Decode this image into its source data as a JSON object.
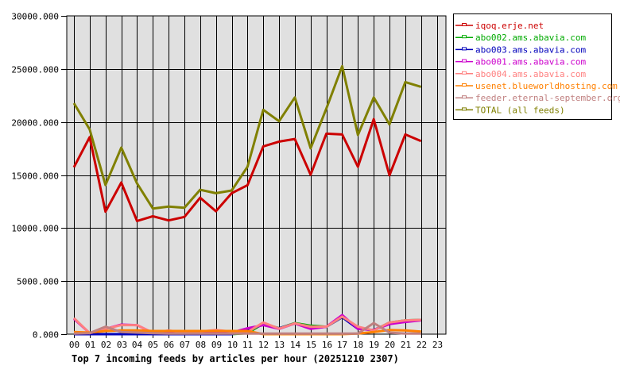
{
  "chart_data": {
    "type": "line",
    "title": "Top 7 incoming feeds by articles per hour (20251210 2307)",
    "xlabel": "",
    "ylabel": "",
    "ylim": [
      0,
      30000
    ],
    "grid": true,
    "legend_position": "right",
    "y_ticks": [
      "0.000",
      "5000.000",
      "10000.000",
      "15000.000",
      "20000.000",
      "25000.000",
      "30000.000"
    ],
    "y_tick_values": [
      0,
      5000,
      10000,
      15000,
      20000,
      25000,
      30000
    ],
    "categories": [
      "00",
      "01",
      "02",
      "03",
      "04",
      "05",
      "06",
      "07",
      "08",
      "09",
      "10",
      "11",
      "12",
      "13",
      "14",
      "15",
      "16",
      "17",
      "18",
      "19",
      "20",
      "21",
      "22",
      "23"
    ],
    "series": [
      {
        "name": "iqoq.erje.net",
        "color": "#cc0000",
        "values": [
          15730,
          18570,
          11540,
          14290,
          10670,
          11120,
          10720,
          11050,
          12860,
          11590,
          13290,
          14040,
          17700,
          18150,
          18400,
          15030,
          18900,
          18820,
          15780,
          20270,
          14980,
          18820,
          18200
        ]
      },
      {
        "name": "abo002.ams.abavia.com",
        "color": "#00aa00",
        "values": [
          0,
          0,
          0,
          0,
          0,
          0,
          0,
          0,
          0,
          0,
          0,
          100,
          1000,
          550,
          1050,
          800,
          700,
          1600,
          600,
          350,
          1100,
          1300,
          1350
        ]
      },
      {
        "name": "abo003.ams.abavia.com",
        "color": "#0000bb",
        "values": [
          0,
          0,
          0,
          0,
          0,
          0,
          0,
          0,
          0,
          0,
          0,
          400,
          900,
          550,
          1000,
          550,
          700,
          1600,
          500,
          400,
          1050,
          1200,
          1350
        ]
      },
      {
        "name": "abo001.ams.abavia.com",
        "color": "#cc00cc",
        "values": [
          1450,
          100,
          500,
          900,
          850,
          120,
          200,
          100,
          150,
          200,
          150,
          550,
          850,
          500,
          1000,
          500,
          700,
          1800,
          500,
          400,
          950,
          1150,
          1300
        ]
      },
      {
        "name": "abo004.ams.abavia.com",
        "color": "#ff8080",
        "values": [
          1520,
          100,
          500,
          850,
          850,
          120,
          350,
          150,
          250,
          400,
          250,
          200,
          1100,
          520,
          1020,
          700,
          700,
          1650,
          700,
          350,
          1100,
          1300,
          1350
        ]
      },
      {
        "name": "usenet.blueworldhosting.com",
        "color": "#ff8000",
        "values": [
          200,
          150,
          300,
          350,
          350,
          300,
          300,
          300,
          300,
          300,
          300,
          300,
          0,
          0,
          0,
          0,
          0,
          0,
          50,
          200,
          400,
          350,
          250
        ]
      },
      {
        "name": "feeder.eternal-september.org",
        "color": "#c08080",
        "values": [
          50,
          100,
          700,
          200,
          150,
          100,
          50,
          50,
          50,
          50,
          50,
          50,
          50,
          50,
          50,
          50,
          50,
          50,
          50,
          1050,
          150,
          50,
          50
        ]
      },
      {
        "name": "TOTAL (all feeds)",
        "color": "#808000",
        "values": [
          21770,
          19300,
          14060,
          17580,
          14210,
          11840,
          12020,
          11920,
          13610,
          13290,
          13540,
          15780,
          21140,
          20070,
          22310,
          17520,
          21270,
          25260,
          18770,
          22310,
          19770,
          23760,
          23310
        ]
      }
    ]
  },
  "legend": {
    "items": [
      {
        "label": "iqoq.erje.net",
        "color": "#cc0000"
      },
      {
        "label": "abo002.ams.abavia.com",
        "color": "#00aa00"
      },
      {
        "label": "abo003.ams.abavia.com",
        "color": "#0000bb"
      },
      {
        "label": "abo001.ams.abavia.com",
        "color": "#cc00cc"
      },
      {
        "label": "abo004.ams.abavia.com",
        "color": "#ff8080"
      },
      {
        "label": "usenet.blueworldhosting.com",
        "color": "#ff8000"
      },
      {
        "label": "feeder.eternal-september.org",
        "color": "#c08080"
      },
      {
        "label": "TOTAL (all feeds)",
        "color": "#808000"
      }
    ]
  },
  "colors": {
    "plot_background": "#e0e0e0",
    "grid": "#000000"
  }
}
